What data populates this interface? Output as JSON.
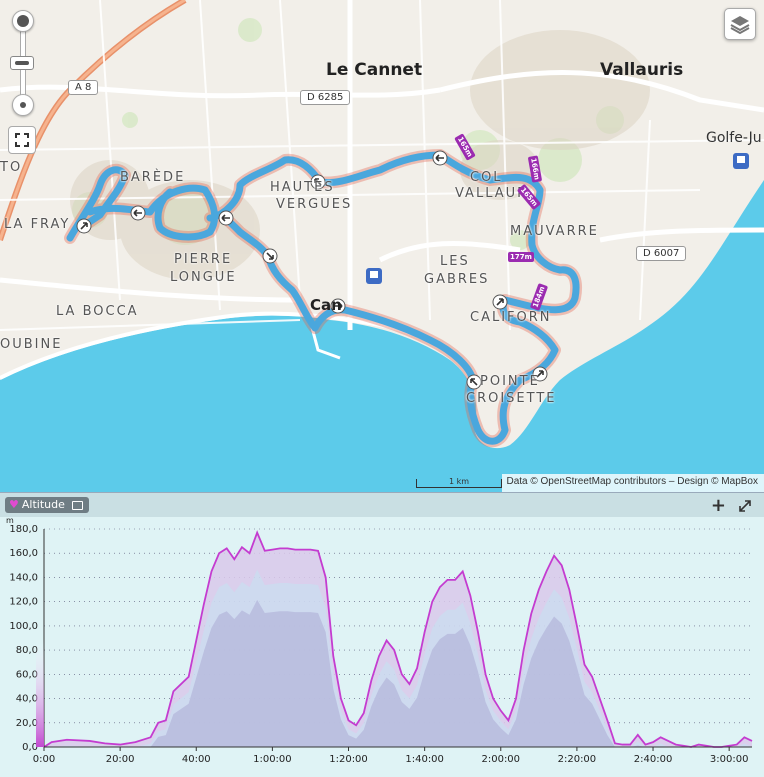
{
  "map": {
    "places": {
      "le_cannet": "Le Cannet",
      "vallauris": "Vallauris",
      "golfe_juan": "Golfe-Ju",
      "la_bocca": "LA BOCCA",
      "pierre_longue_1": "PIERRE",
      "pierre_longue_2": "LONGUE",
      "les_gabres_1": "LES",
      "les_gabres_2": "GABRES",
      "mauvarre": "MAUVARRE",
      "hautes_vergues_1": "HAUTES",
      "hautes_vergues_2": "VERGUES",
      "bareede": "BARÈDE",
      "la_frayere": "LA FRAY",
      "ranguin": "TO",
      "la_roubine": "OUBINE",
      "col_vallauris": "COL",
      "col_vallauris_2": "VALLAUR",
      "californie": "CALIFORN",
      "pointe_croisette_1": "POINTE",
      "pointe_croisette_2": "CROISETTE",
      "cannes": "Can"
    },
    "roads": {
      "a8": "A 8",
      "d6285": "D 6285",
      "d6007": "D 6007"
    },
    "distance_markers": [
      "165m",
      "166m",
      "165m",
      "177m",
      "184m"
    ],
    "scale_label": "1 km",
    "attribution": "Data © OpenStreetMap contributors – Design © MapBox",
    "icons": {
      "zoom_in": "zoom-in-icon",
      "zoom_out": "zoom-out-icon",
      "fullscreen": "fullscreen-icon",
      "layers": "layers-icon"
    },
    "colors": {
      "sea": "#58c8e8",
      "land": "#f2efe9",
      "route": "#4aa7dd",
      "direction_arrow": "#555555"
    }
  },
  "profile": {
    "tag_label": "Altitude",
    "add_label": "+",
    "unit_label": "m"
  },
  "chart_data": {
    "type": "area",
    "ylabel": "m",
    "ylim": [
      0,
      180
    ],
    "xlim_minutes": [
      0,
      186
    ],
    "y_ticks": [
      "0,0",
      "20,0",
      "40,0",
      "60,0",
      "80,0",
      "100,0",
      "120,0",
      "140,0",
      "160,0",
      "180,0"
    ],
    "x_ticks": [
      "0:00",
      "20:00",
      "40:00",
      "1:00:00",
      "1:20:00",
      "1:40:00",
      "2:00:00",
      "2:20:00",
      "2:40:00",
      "3:00:00"
    ],
    "grid": true,
    "series": [
      {
        "name": "",
        "x_minutes": [
          0,
          2,
          6,
          12,
          16,
          20,
          24,
          28,
          30,
          32,
          34,
          38,
          40,
          42,
          44,
          46,
          48,
          50,
          52,
          54,
          56,
          58,
          60,
          62,
          64,
          66,
          68,
          70,
          72,
          74,
          76,
          78,
          80,
          82,
          84,
          86,
          88,
          90,
          92,
          94,
          96,
          98,
          100,
          102,
          104,
          106,
          108,
          110,
          112,
          114,
          116,
          118,
          120,
          122,
          124,
          126,
          128,
          130,
          132,
          134,
          136,
          138,
          140,
          142,
          144,
          146,
          148,
          150,
          152,
          154,
          156,
          158,
          160,
          162,
          164,
          166,
          168,
          170,
          172,
          174,
          176,
          178,
          180,
          182,
          184,
          186
        ],
        "values": [
          0,
          4,
          6,
          5,
          3,
          2,
          4,
          8,
          20,
          22,
          46,
          58,
          88,
          118,
          145,
          160,
          164,
          155,
          165,
          160,
          177,
          162,
          163,
          164,
          164,
          163,
          163,
          163,
          162,
          140,
          75,
          40,
          22,
          18,
          28,
          55,
          75,
          88,
          80,
          60,
          52,
          65,
          95,
          120,
          132,
          138,
          138,
          145,
          125,
          95,
          60,
          40,
          30,
          22,
          40,
          80,
          110,
          130,
          145,
          158,
          150,
          130,
          100,
          68,
          58,
          40,
          22,
          3,
          2,
          2,
          10,
          2,
          4,
          8,
          5,
          2,
          1,
          0,
          2,
          1,
          0,
          0,
          1,
          2,
          8,
          5
        ]
      }
    ]
  }
}
